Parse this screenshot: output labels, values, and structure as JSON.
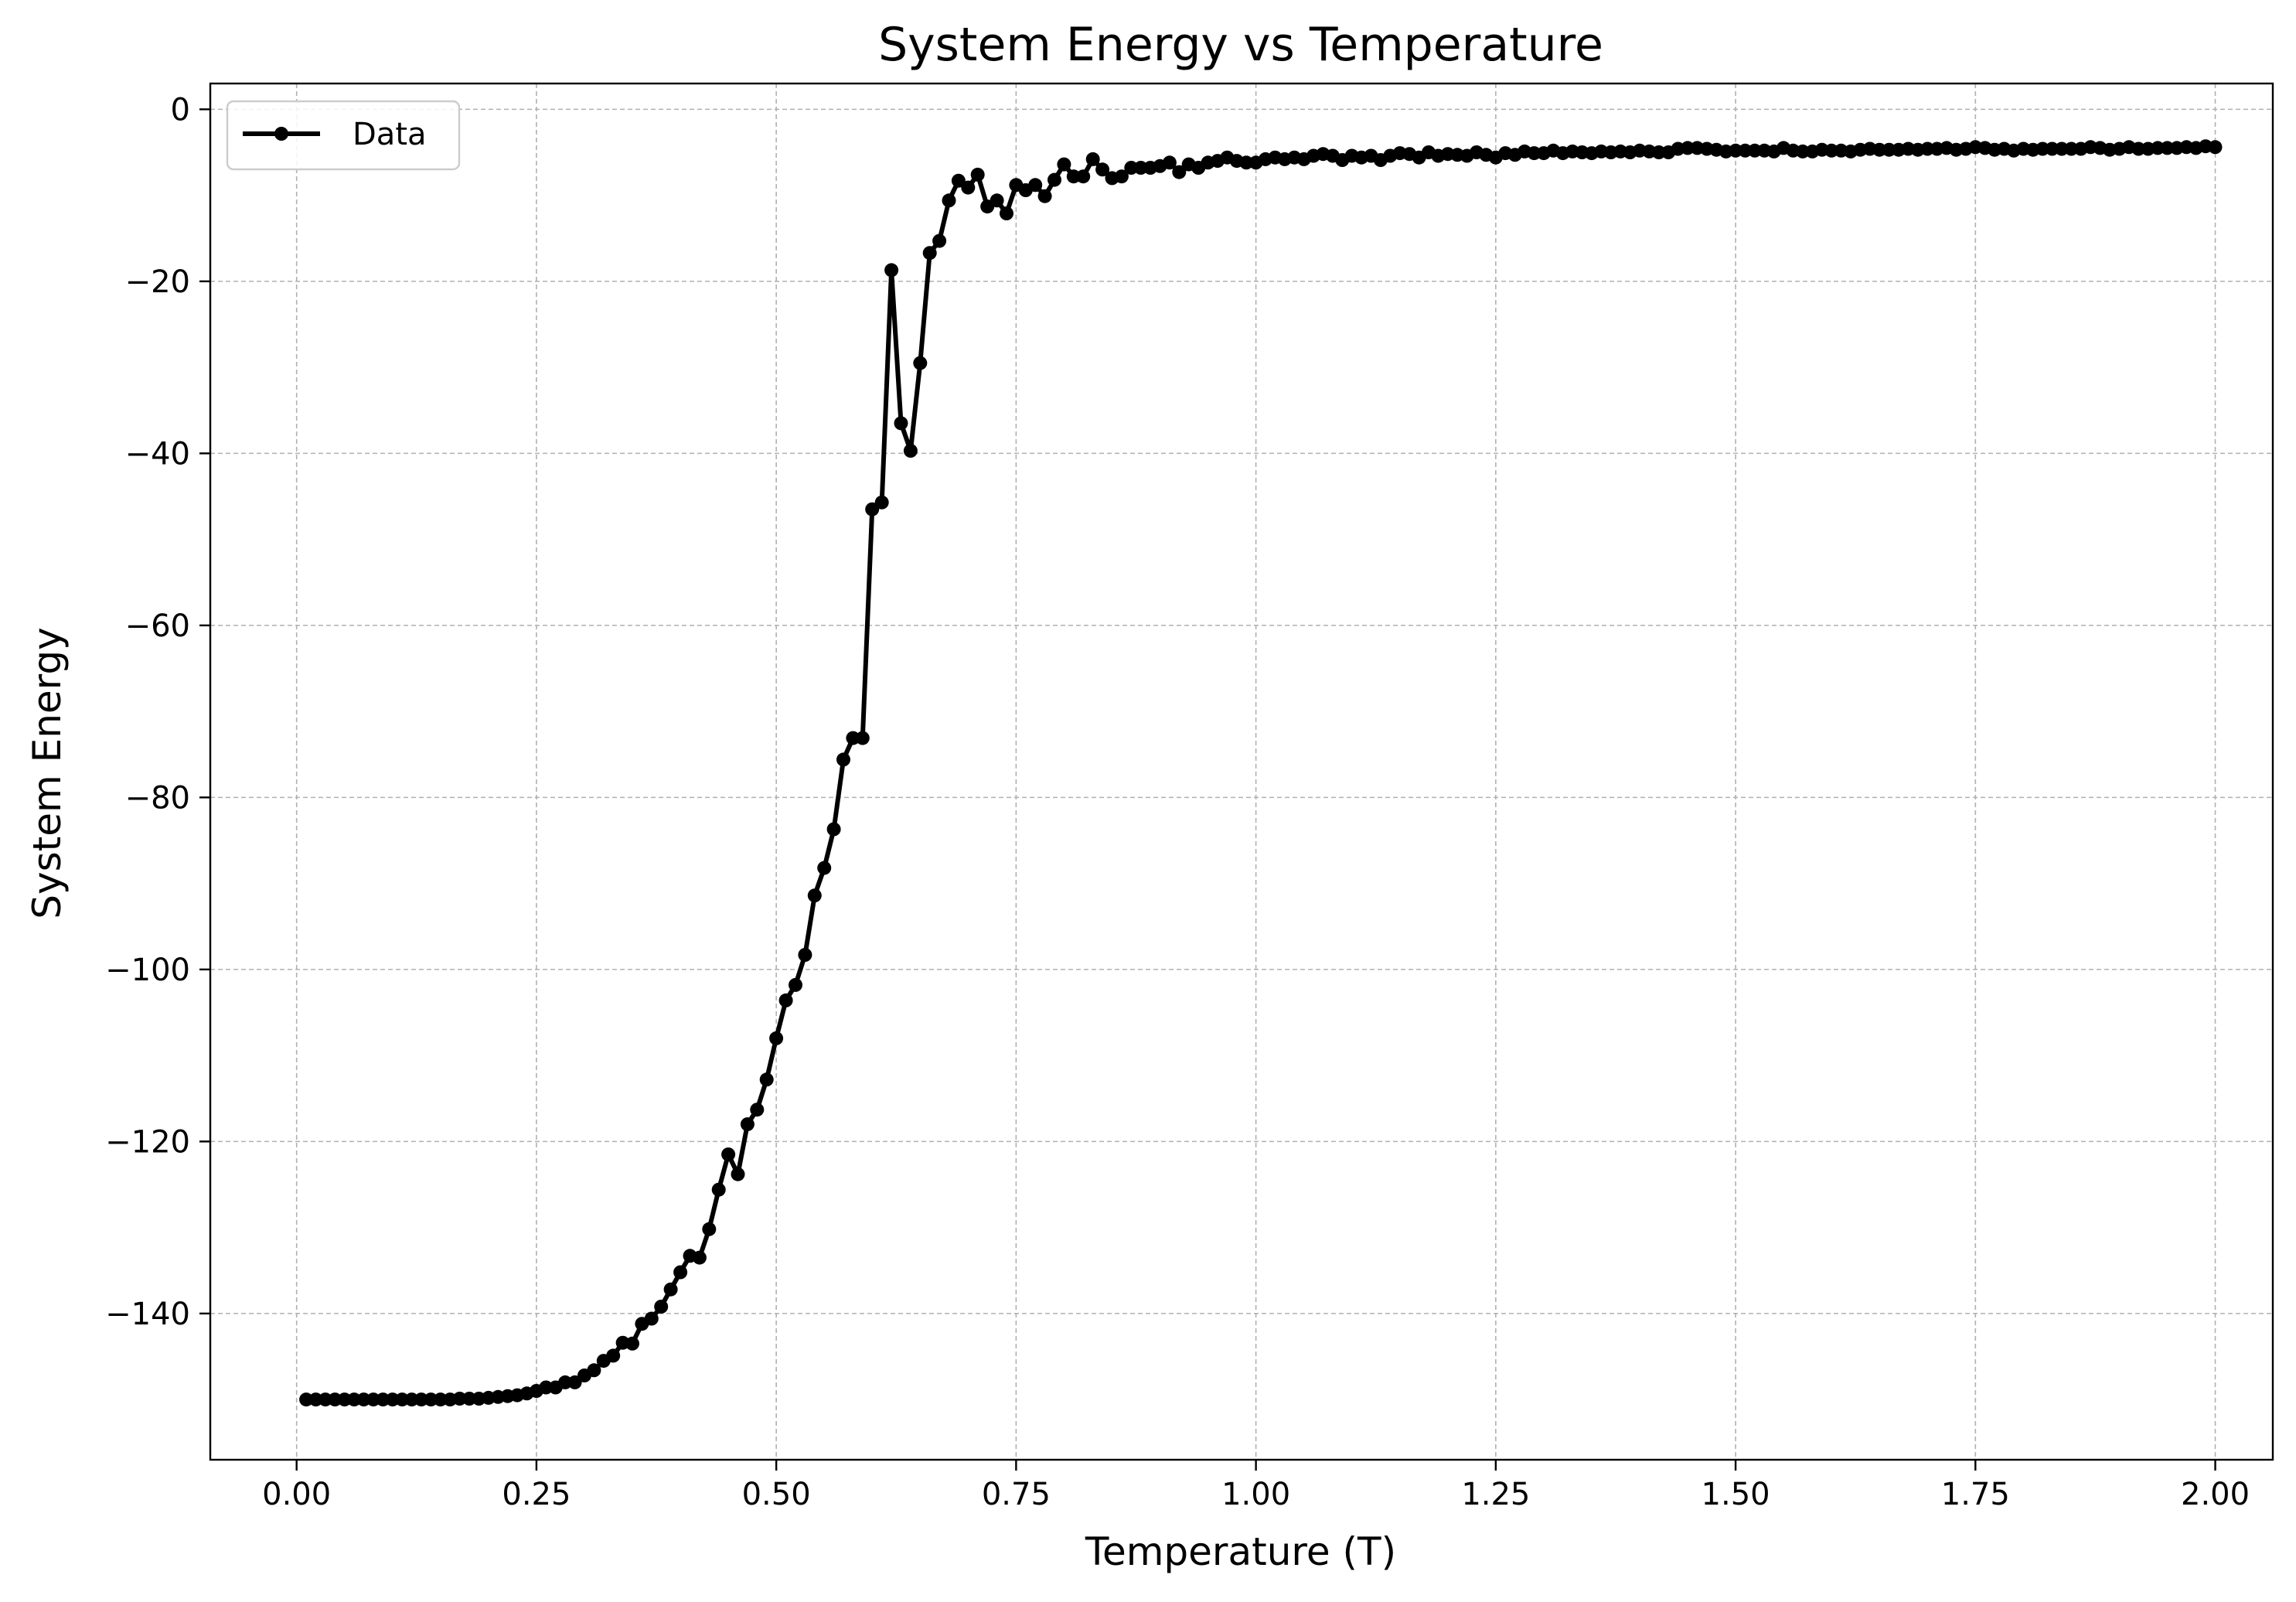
{
  "chart_data": {
    "type": "line",
    "title": "System Energy vs Temperature",
    "xlabel": "Temperature (T)",
    "ylabel": "System Energy",
    "xlim": [
      -0.09,
      2.06
    ],
    "ylim": [
      -157,
      3
    ],
    "grid": true,
    "legend_position": "top-left",
    "x_ticks": [
      {
        "value": 0.0,
        "label": "0.00"
      },
      {
        "value": 0.25,
        "label": "0.25"
      },
      {
        "value": 0.5,
        "label": "0.50"
      },
      {
        "value": 0.75,
        "label": "0.75"
      },
      {
        "value": 1.0,
        "label": "1.00"
      },
      {
        "value": 1.25,
        "label": "1.25"
      },
      {
        "value": 1.5,
        "label": "1.50"
      },
      {
        "value": 1.75,
        "label": "1.75"
      },
      {
        "value": 2.0,
        "label": "2.00"
      }
    ],
    "y_ticks": [
      {
        "value": 0,
        "label": "0"
      },
      {
        "value": -20,
        "label": "−20"
      },
      {
        "value": -40,
        "label": "−40"
      },
      {
        "value": -60,
        "label": "−60"
      },
      {
        "value": -80,
        "label": "−80"
      },
      {
        "value": -100,
        "label": "−100"
      },
      {
        "value": -120,
        "label": "−120"
      },
      {
        "value": -140,
        "label": "−140"
      }
    ],
    "series": [
      {
        "name": "Data",
        "color": "#000000",
        "marker": "circle",
        "x": [
          0.01,
          0.02,
          0.03,
          0.04,
          0.05,
          0.06,
          0.07,
          0.08,
          0.09,
          0.1,
          0.11,
          0.12,
          0.13,
          0.14,
          0.15,
          0.16,
          0.17,
          0.18,
          0.19,
          0.2,
          0.21,
          0.22,
          0.23,
          0.24,
          0.25,
          0.26,
          0.27,
          0.28,
          0.29,
          0.3,
          0.31,
          0.32,
          0.33,
          0.34,
          0.35,
          0.36,
          0.37,
          0.38,
          0.39,
          0.4,
          0.41,
          0.42,
          0.43,
          0.44,
          0.45,
          0.46,
          0.47,
          0.48,
          0.49,
          0.5,
          0.51,
          0.52,
          0.53,
          0.54,
          0.55,
          0.56,
          0.57,
          0.58,
          0.59,
          0.6,
          0.61,
          0.62,
          0.63,
          0.64,
          0.65,
          0.66,
          0.67,
          0.68,
          0.69,
          0.7,
          0.71,
          0.72,
          0.73,
          0.74,
          0.75,
          0.76,
          0.77,
          0.78,
          0.79,
          0.8,
          0.81,
          0.82,
          0.83,
          0.84,
          0.85,
          0.86,
          0.87,
          0.88,
          0.89,
          0.9,
          0.91,
          0.92,
          0.93,
          0.94,
          0.95,
          0.96,
          0.97,
          0.98,
          0.99,
          1.0,
          1.01,
          1.02,
          1.03,
          1.04,
          1.05,
          1.06,
          1.07,
          1.08,
          1.09,
          1.1,
          1.11,
          1.12,
          1.13,
          1.14,
          1.15,
          1.16,
          1.17,
          1.18,
          1.19,
          1.2,
          1.21,
          1.22,
          1.23,
          1.24,
          1.25,
          1.26,
          1.27,
          1.28,
          1.29,
          1.3,
          1.31,
          1.32,
          1.33,
          1.34,
          1.35,
          1.36,
          1.37,
          1.38,
          1.39,
          1.4,
          1.41,
          1.42,
          1.43,
          1.44,
          1.45,
          1.46,
          1.47,
          1.48,
          1.49,
          1.5,
          1.51,
          1.52,
          1.53,
          1.54,
          1.55,
          1.56,
          1.57,
          1.58,
          1.59,
          1.6,
          1.61,
          1.62,
          1.63,
          1.64,
          1.65,
          1.66,
          1.67,
          1.68,
          1.69,
          1.7,
          1.71,
          1.72,
          1.73,
          1.74,
          1.75,
          1.76,
          1.77,
          1.78,
          1.79,
          1.8,
          1.81,
          1.82,
          1.83,
          1.84,
          1.85,
          1.86,
          1.87,
          1.88,
          1.89,
          1.9,
          1.91,
          1.92,
          1.93,
          1.94,
          1.95,
          1.96,
          1.97,
          1.98,
          1.99,
          2.0
        ],
        "y": [
          -150.0,
          -150.0,
          -150.0,
          -150.0,
          -150.0,
          -150.0,
          -150.0,
          -150.0,
          -150.0,
          -150.0,
          -150.0,
          -150.0,
          -150.0,
          -150.0,
          -150.0,
          -150.0,
          -149.9,
          -149.9,
          -149.9,
          -149.8,
          -149.7,
          -149.6,
          -149.5,
          -149.3,
          -149.0,
          -148.6,
          -148.6,
          -148.0,
          -148.0,
          -147.2,
          -146.6,
          -145.5,
          -144.9,
          -143.4,
          -143.5,
          -141.2,
          -140.6,
          -139.2,
          -137.2,
          -135.2,
          -133.3,
          -133.5,
          -130.2,
          -125.6,
          -121.5,
          -123.8,
          -118.0,
          -116.3,
          -112.8,
          -108.0,
          -103.6,
          -101.8,
          -98.3,
          -91.4,
          -88.2,
          -83.7,
          -75.6,
          -73.1,
          -73.1,
          -46.5,
          -45.7,
          -18.7,
          -36.5,
          -39.7,
          -29.5,
          -16.7,
          -15.3,
          -10.6,
          -8.3,
          -9.1,
          -7.6,
          -11.3,
          -10.6,
          -12.1,
          -8.8,
          -9.4,
          -8.8,
          -10.1,
          -8.2,
          -6.4,
          -7.8,
          -7.8,
          -5.8,
          -7.0,
          -8.0,
          -7.8,
          -6.8,
          -6.8,
          -6.8,
          -6.6,
          -6.2,
          -7.3,
          -6.4,
          -6.8,
          -6.2,
          -6.0,
          -5.6,
          -6.0,
          -6.2,
          -6.2,
          -5.8,
          -5.6,
          -5.8,
          -5.6,
          -5.8,
          -5.4,
          -5.2,
          -5.4,
          -5.9,
          -5.4,
          -5.6,
          -5.4,
          -5.9,
          -5.4,
          -5.1,
          -5.2,
          -5.6,
          -5.0,
          -5.4,
          -5.2,
          -5.3,
          -5.4,
          -5.0,
          -5.3,
          -5.6,
          -5.1,
          -5.3,
          -4.9,
          -5.1,
          -5.1,
          -4.8,
          -5.1,
          -4.9,
          -5.0,
          -5.1,
          -4.9,
          -5.0,
          -4.9,
          -5.0,
          -4.8,
          -4.9,
          -5.0,
          -5.0,
          -4.6,
          -4.5,
          -4.5,
          -4.6,
          -4.7,
          -4.9,
          -4.8,
          -4.8,
          -4.8,
          -4.8,
          -4.9,
          -4.5,
          -4.8,
          -4.9,
          -4.9,
          -4.7,
          -4.8,
          -4.8,
          -4.9,
          -4.7,
          -4.6,
          -4.7,
          -4.7,
          -4.7,
          -4.6,
          -4.7,
          -4.6,
          -4.6,
          -4.5,
          -4.7,
          -4.6,
          -4.4,
          -4.5,
          -4.7,
          -4.6,
          -4.8,
          -4.6,
          -4.7,
          -4.6,
          -4.6,
          -4.6,
          -4.6,
          -4.6,
          -4.4,
          -4.5,
          -4.7,
          -4.6,
          -4.4,
          -4.6,
          -4.6,
          -4.5,
          -4.5,
          -4.5,
          -4.4,
          -4.5,
          -4.3,
          -4.4
        ]
      }
    ]
  }
}
